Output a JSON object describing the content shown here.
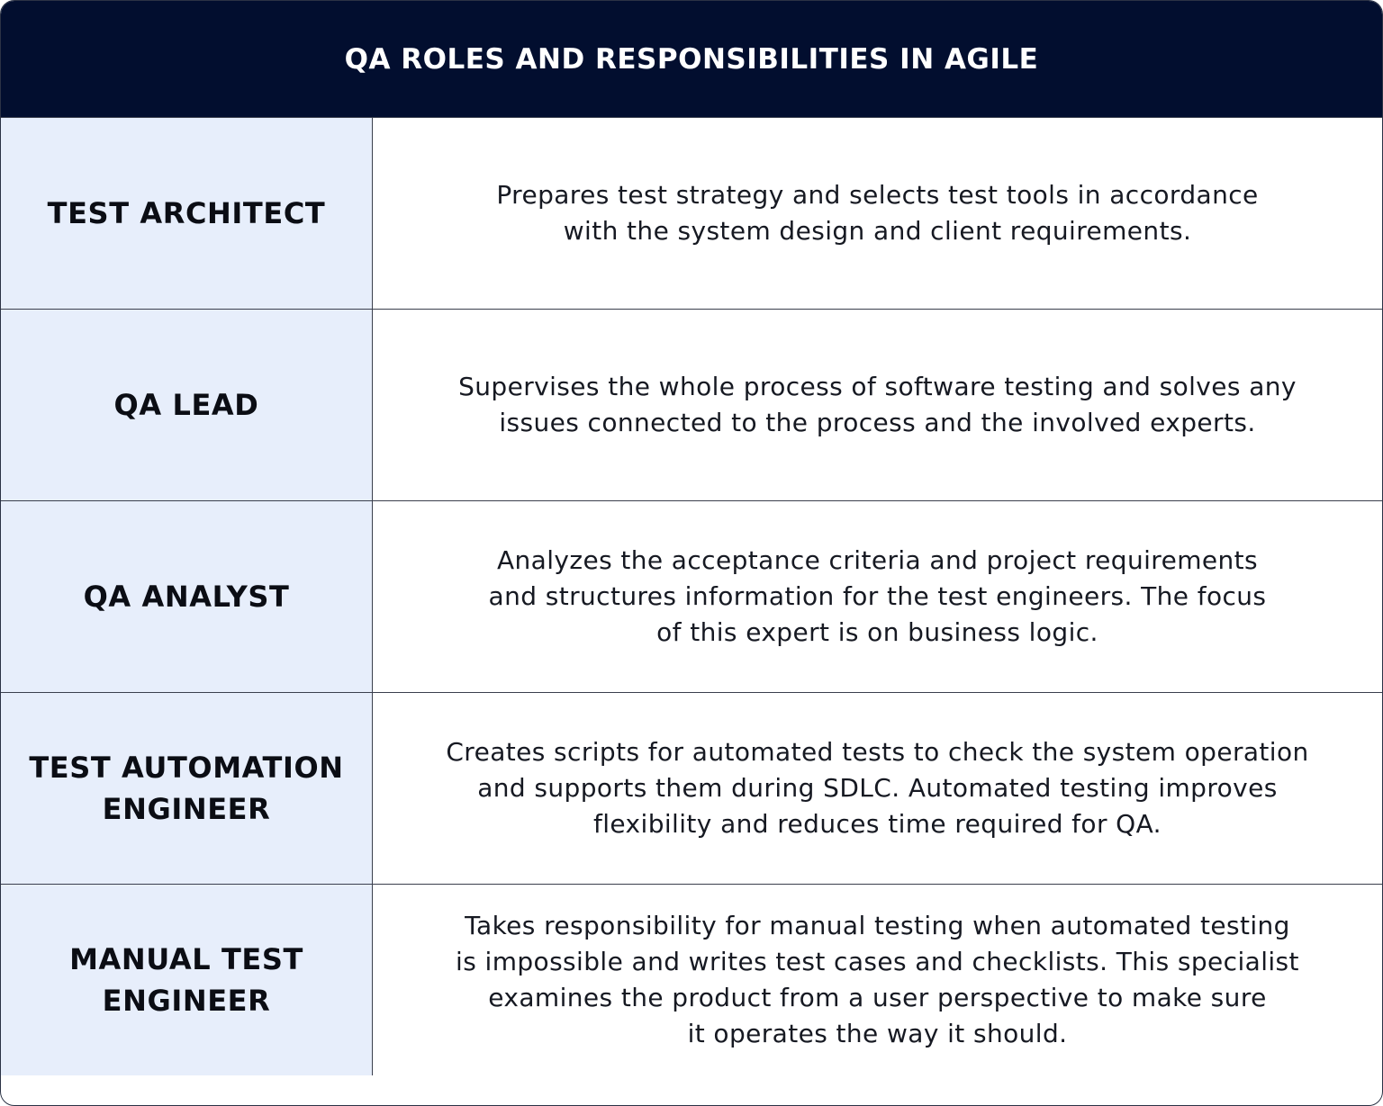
{
  "title": "QA ROLES AND RESPONSIBILITIES IN AGILE",
  "colors": {
    "header_bg": "#020e2f",
    "role_bg": "#e7eefb",
    "border": "#3a3f4d"
  },
  "rows": [
    {
      "role": [
        "TEST ARCHITECT"
      ],
      "description": [
        "Prepares test strategy and selects test tools in accordance",
        "with the system design and client requirements."
      ]
    },
    {
      "role": [
        "QA LEAD"
      ],
      "description": [
        "Supervises the whole process of software testing and solves any",
        "issues connected to the process and the involved experts."
      ]
    },
    {
      "role": [
        "QA ANALYST"
      ],
      "description": [
        "Analyzes the acceptance criteria and project requirements",
        "and structures information for the test engineers. The focus",
        "of this expert is on business logic."
      ]
    },
    {
      "role": [
        "TEST AUTOMATION",
        "ENGINEER"
      ],
      "description": [
        "Creates scripts for automated tests to check the system operation",
        "and supports them during SDLC. Automated testing improves",
        "flexibility and reduces time required for QA."
      ]
    },
    {
      "role": [
        "MANUAL TEST",
        "ENGINEER"
      ],
      "description": [
        "Takes responsibility for manual testing when automated testing",
        "is impossible and writes test cases and checklists. This specialist",
        "examines the product from a user perspective to make sure",
        "it operates the way it should."
      ]
    }
  ]
}
